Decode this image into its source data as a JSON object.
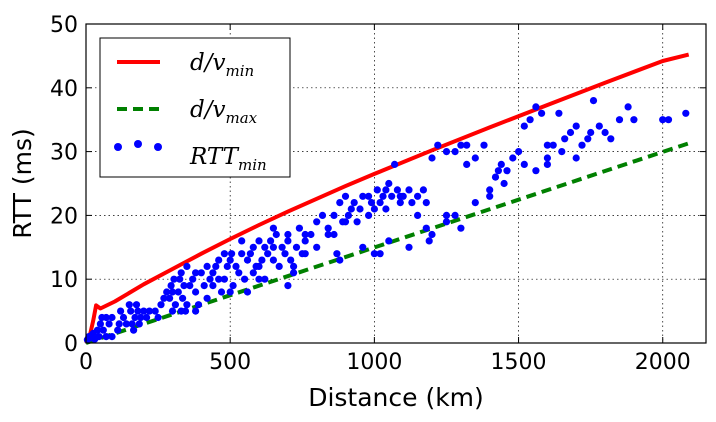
{
  "chart_data": {
    "type": "scatter",
    "title": "",
    "xlabel": "Distance (km)",
    "ylabel": "RTT (ms)",
    "xlim": [
      0,
      2150
    ],
    "ylim": [
      0,
      50
    ],
    "xticks": [
      0,
      500,
      1000,
      1500,
      2000
    ],
    "yticks": [
      0,
      10,
      20,
      30,
      40,
      50
    ],
    "grid": true,
    "legend_position": "top-left",
    "series": [
      {
        "name": "d/v_min",
        "legend_main": "d/v",
        "legend_sub": "min",
        "kind": "line",
        "style": "solid",
        "color": "#ff0000",
        "x": [
          0,
          5,
          15,
          25,
          35,
          50,
          100,
          200,
          300,
          400,
          500,
          600,
          700,
          800,
          900,
          1000,
          1200,
          1400,
          1600,
          1800,
          2000,
          2090
        ],
        "y": [
          0,
          0.6,
          1.5,
          3.5,
          5.9,
          5.4,
          6.5,
          9.2,
          11.6,
          14.0,
          16.3,
          18.5,
          20.6,
          22.6,
          24.6,
          26.5,
          30.2,
          33.8,
          37.3,
          40.8,
          44.2,
          45.2
        ]
      },
      {
        "name": "d/v_max",
        "legend_main": "d/v",
        "legend_sub": "max",
        "kind": "line",
        "style": "dashed",
        "color": "#008000",
        "x": [
          0,
          2090
        ],
        "y": [
          0,
          31.3
        ]
      },
      {
        "name": "RTT_min",
        "legend_main": "RTT",
        "legend_sub": "min",
        "kind": "scatter",
        "color": "#0000ff",
        "points": [
          [
            5,
            0.5
          ],
          [
            10,
            1
          ],
          [
            15,
            0.8
          ],
          [
            20,
            1.2
          ],
          [
            25,
            1.5
          ],
          [
            30,
            0.6
          ],
          [
            40,
            2
          ],
          [
            45,
            1
          ],
          [
            50,
            3
          ],
          [
            55,
            4
          ],
          [
            60,
            2
          ],
          [
            70,
            4
          ],
          [
            70,
            1
          ],
          [
            80,
            3
          ],
          [
            90,
            1
          ],
          [
            90,
            4
          ],
          [
            110,
            2
          ],
          [
            115,
            3
          ],
          [
            120,
            5
          ],
          [
            130,
            4
          ],
          [
            140,
            3
          ],
          [
            150,
            6
          ],
          [
            155,
            5
          ],
          [
            160,
            3
          ],
          [
            165,
            2
          ],
          [
            170,
            4
          ],
          [
            175,
            6
          ],
          [
            180,
            5
          ],
          [
            185,
            3
          ],
          [
            190,
            4
          ],
          [
            200,
            5
          ],
          [
            210,
            4
          ],
          [
            220,
            5
          ],
          [
            240,
            5
          ],
          [
            250,
            4
          ],
          [
            260,
            6
          ],
          [
            270,
            7
          ],
          [
            280,
            8
          ],
          [
            290,
            7
          ],
          [
            295,
            9
          ],
          [
            300,
            8
          ],
          [
            305,
            10
          ],
          [
            310,
            6
          ],
          [
            320,
            8
          ],
          [
            325,
            10
          ],
          [
            330,
            11
          ],
          [
            335,
            7
          ],
          [
            340,
            9
          ],
          [
            345,
            5
          ],
          [
            350,
            12
          ],
          [
            360,
            9
          ],
          [
            370,
            10
          ],
          [
            380,
            8
          ],
          [
            390,
            6
          ],
          [
            400,
            11
          ],
          [
            410,
            9
          ],
          [
            420,
            12
          ],
          [
            430,
            10
          ],
          [
            440,
            11
          ],
          [
            450,
            12
          ],
          [
            460,
            13
          ],
          [
            470,
            8
          ],
          [
            480,
            10
          ],
          [
            490,
            12
          ],
          [
            500,
            13
          ],
          [
            505,
            14
          ],
          [
            510,
            9
          ],
          [
            520,
            12
          ],
          [
            530,
            11
          ],
          [
            540,
            14
          ],
          [
            550,
            10
          ],
          [
            560,
            13
          ],
          [
            570,
            14
          ],
          [
            580,
            15
          ],
          [
            590,
            12
          ],
          [
            600,
            16
          ],
          [
            610,
            13
          ],
          [
            620,
            15
          ],
          [
            630,
            14
          ],
          [
            640,
            16
          ],
          [
            650,
            13
          ],
          [
            660,
            17
          ],
          [
            670,
            12
          ],
          [
            680,
            15
          ],
          [
            690,
            14
          ],
          [
            700,
            16
          ],
          [
            710,
            13
          ],
          [
            720,
            12
          ],
          [
            730,
            15
          ],
          [
            740,
            18
          ],
          [
            750,
            14
          ],
          [
            760,
            16
          ],
          [
            780,
            17
          ],
          [
            800,
            19
          ],
          [
            820,
            20
          ],
          [
            840,
            18
          ],
          [
            860,
            17
          ],
          [
            880,
            22
          ],
          [
            890,
            19
          ],
          [
            900,
            23
          ],
          [
            910,
            20
          ],
          [
            920,
            21
          ],
          [
            930,
            22
          ],
          [
            950,
            21
          ],
          [
            960,
            23
          ],
          [
            980,
            20
          ],
          [
            990,
            22
          ],
          [
            1000,
            21
          ],
          [
            1010,
            24
          ],
          [
            1020,
            22
          ],
          [
            1030,
            23
          ],
          [
            1040,
            24
          ],
          [
            1050,
            25
          ],
          [
            1060,
            23
          ],
          [
            1070,
            28
          ],
          [
            1080,
            24
          ],
          [
            1090,
            22
          ],
          [
            1100,
            23
          ],
          [
            1120,
            24
          ],
          [
            1130,
            22
          ],
          [
            1150,
            23
          ],
          [
            1170,
            24
          ],
          [
            1200,
            29
          ],
          [
            1220,
            31
          ],
          [
            1250,
            30
          ],
          [
            1280,
            30
          ],
          [
            1300,
            31
          ],
          [
            1320,
            28
          ],
          [
            1350,
            29
          ],
          [
            1380,
            31
          ],
          [
            1400,
            24
          ],
          [
            1420,
            26
          ],
          [
            1440,
            28
          ],
          [
            1460,
            27
          ],
          [
            1480,
            29
          ],
          [
            1500,
            30
          ],
          [
            1520,
            34
          ],
          [
            1540,
            35
          ],
          [
            1560,
            37
          ],
          [
            1580,
            36
          ],
          [
            1600,
            29
          ],
          [
            1620,
            31
          ],
          [
            1640,
            36
          ],
          [
            1660,
            32
          ],
          [
            1680,
            33
          ],
          [
            1700,
            34
          ],
          [
            1720,
            31
          ],
          [
            1740,
            32
          ],
          [
            1760,
            38
          ],
          [
            1780,
            34
          ],
          [
            1800,
            33
          ],
          [
            1820,
            32
          ],
          [
            1850,
            35
          ],
          [
            1880,
            37
          ],
          [
            1900,
            35
          ],
          [
            2000,
            35
          ],
          [
            2020,
            35
          ],
          [
            2080,
            36
          ],
          [
            870,
            14
          ],
          [
            880,
            13
          ],
          [
            960,
            15
          ],
          [
            1000,
            14
          ],
          [
            1020,
            14
          ],
          [
            1050,
            16
          ],
          [
            1120,
            15
          ],
          [
            1180,
            18
          ],
          [
            1190,
            16
          ],
          [
            1200,
            17
          ],
          [
            1250,
            19
          ],
          [
            1280,
            20
          ],
          [
            1300,
            18
          ],
          [
            1350,
            22
          ],
          [
            1450,
            25
          ],
          [
            1520,
            28
          ],
          [
            1560,
            27
          ],
          [
            1600,
            31
          ],
          [
            1650,
            30
          ],
          [
            1700,
            29
          ],
          [
            1750,
            33
          ],
          [
            1600,
            28
          ],
          [
            700,
            9
          ],
          [
            720,
            11
          ],
          [
            760,
            14
          ],
          [
            650,
            15
          ],
          [
            620,
            10
          ],
          [
            560,
            8
          ],
          [
            580,
            11
          ],
          [
            600,
            10
          ],
          [
            500,
            8
          ],
          [
            460,
            10
          ],
          [
            420,
            7
          ],
          [
            380,
            5
          ],
          [
            350,
            6
          ],
          [
            300,
            5
          ],
          [
            330,
            5
          ],
          [
            380,
            11
          ],
          [
            440,
            9
          ],
          [
            540,
            16
          ],
          [
            480,
            14
          ],
          [
            600,
            12
          ],
          [
            650,
            18
          ],
          [
            700,
            17
          ],
          [
            760,
            17
          ],
          [
            800,
            15
          ],
          [
            840,
            17
          ],
          [
            860,
            20
          ],
          [
            900,
            19
          ],
          [
            940,
            19
          ],
          [
            980,
            23
          ],
          [
            1040,
            21
          ],
          [
            1090,
            23
          ],
          [
            1150,
            20
          ],
          [
            1180,
            22
          ],
          [
            1250,
            20
          ],
          [
            1320,
            31
          ],
          [
            1400,
            23
          ],
          [
            1430,
            27
          ]
        ]
      }
    ]
  }
}
